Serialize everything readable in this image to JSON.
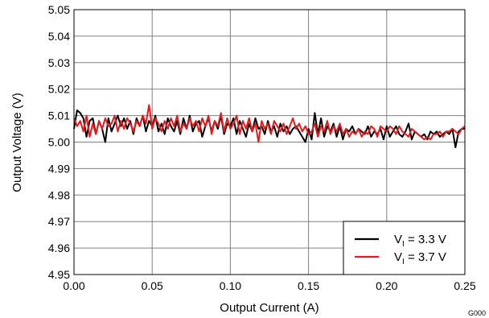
{
  "chart_data": {
    "type": "line",
    "xlabel": "Output Current (A)",
    "ylabel": "Output Voltage (V)",
    "xlim": [
      0,
      0.25
    ],
    "ylim": [
      4.95,
      5.05
    ],
    "x_ticks": [
      "0.00",
      "0.05",
      "0.10",
      "0.15",
      "0.20",
      "0.25"
    ],
    "y_ticks": [
      "4.95",
      "4.96",
      "4.97",
      "4.98",
      "4.99",
      "5.00",
      "5.01",
      "5.02",
      "5.03",
      "5.04",
      "5.05"
    ],
    "grid": true,
    "legend_position": "bottom-right",
    "figure_code": "G000",
    "series": [
      {
        "name_main": "V",
        "name_sub": "I",
        "name_rest": " = 3.3 V",
        "color": "#000000",
        "x": [
          0,
          0.002,
          0.004,
          0.006,
          0.008,
          0.01,
          0.012,
          0.014,
          0.016,
          0.018,
          0.02,
          0.022,
          0.024,
          0.026,
          0.028,
          0.03,
          0.032,
          0.034,
          0.036,
          0.038,
          0.04,
          0.042,
          0.044,
          0.046,
          0.048,
          0.05,
          0.052,
          0.054,
          0.056,
          0.058,
          0.06,
          0.062,
          0.064,
          0.066,
          0.068,
          0.07,
          0.072,
          0.074,
          0.076,
          0.078,
          0.08,
          0.082,
          0.084,
          0.086,
          0.088,
          0.09,
          0.092,
          0.094,
          0.096,
          0.098,
          0.1,
          0.102,
          0.104,
          0.106,
          0.108,
          0.11,
          0.112,
          0.114,
          0.116,
          0.118,
          0.12,
          0.122,
          0.124,
          0.126,
          0.128,
          0.13,
          0.132,
          0.134,
          0.136,
          0.138,
          0.14,
          0.142,
          0.144,
          0.146,
          0.148,
          0.15,
          0.152,
          0.154,
          0.156,
          0.158,
          0.16,
          0.162,
          0.164,
          0.166,
          0.168,
          0.17,
          0.172,
          0.174,
          0.176,
          0.178,
          0.18,
          0.182,
          0.184,
          0.186,
          0.188,
          0.19,
          0.192,
          0.194,
          0.196,
          0.198,
          0.2,
          0.202,
          0.204,
          0.206,
          0.208,
          0.21,
          0.212,
          0.214,
          0.216,
          0.218,
          0.22,
          0.222,
          0.224,
          0.226,
          0.228,
          0.23,
          0.232,
          0.234,
          0.236,
          0.238,
          0.24,
          0.242,
          0.244,
          0.246,
          0.248,
          0.25
        ],
        "values": [
          5.005,
          5.012,
          5.011,
          5.009,
          5.002,
          5.008,
          5.009,
          5.003,
          5.008,
          5.005,
          5.0,
          5.009,
          5.004,
          5.007,
          5.01,
          5.006,
          5.009,
          5.005,
          5.008,
          5.003,
          5.009,
          5.006,
          5.01,
          5.004,
          5.008,
          5.006,
          5.01,
          5.004,
          5.007,
          5.003,
          5.009,
          5.006,
          5.004,
          5.008,
          5.003,
          5.009,
          5.005,
          5.01,
          5.004,
          5.007,
          5.008,
          5.002,
          5.006,
          5.009,
          5.004,
          5.008,
          5.005,
          5.01,
          5.003,
          5.007,
          5.006,
          5.009,
          5.003,
          5.008,
          5.005,
          5.002,
          5.007,
          5.004,
          5.009,
          5.005,
          5.006,
          5.003,
          5.008,
          5.004,
          5.006,
          5.002,
          5.007,
          5.004,
          5.006,
          5.003,
          5.005,
          5.006,
          5.004,
          5.002,
          5.0,
          5.005,
          5.001,
          5.011,
          5.003,
          5.009,
          5.002,
          5.006,
          5.004,
          5.007,
          5.002,
          5.006,
          5.001,
          5.005,
          5.004,
          5.006,
          5.003,
          5.005,
          5.004,
          5.003,
          5.006,
          5.002,
          5.004,
          5.003,
          5.005,
          5.001,
          5.006,
          5.002,
          5.004,
          5.006,
          5.003,
          5.002,
          5.004,
          5.007,
          5.001,
          5.004,
          5.003,
          5.002,
          5.003,
          5.001,
          5.004,
          5.003,
          5.004,
          5.002,
          5.003,
          5.004,
          5.003,
          5.005,
          4.998,
          5.004,
          5.005,
          5.005
        ]
      },
      {
        "name_main": "V",
        "name_sub": "I",
        "name_rest": " = 3.7 V",
        "color": "#e8191c",
        "x": [
          0,
          0.002,
          0.004,
          0.006,
          0.008,
          0.01,
          0.012,
          0.014,
          0.016,
          0.018,
          0.02,
          0.022,
          0.024,
          0.026,
          0.028,
          0.03,
          0.032,
          0.034,
          0.036,
          0.038,
          0.04,
          0.042,
          0.044,
          0.046,
          0.048,
          0.05,
          0.052,
          0.054,
          0.056,
          0.058,
          0.06,
          0.062,
          0.064,
          0.066,
          0.068,
          0.07,
          0.072,
          0.074,
          0.076,
          0.078,
          0.08,
          0.082,
          0.084,
          0.086,
          0.088,
          0.09,
          0.092,
          0.094,
          0.096,
          0.098,
          0.1,
          0.102,
          0.104,
          0.106,
          0.108,
          0.11,
          0.112,
          0.114,
          0.116,
          0.118,
          0.12,
          0.122,
          0.124,
          0.126,
          0.128,
          0.13,
          0.132,
          0.134,
          0.136,
          0.138,
          0.14,
          0.142,
          0.144,
          0.146,
          0.148,
          0.15,
          0.152,
          0.154,
          0.156,
          0.158,
          0.16,
          0.162,
          0.164,
          0.166,
          0.168,
          0.17,
          0.172,
          0.174,
          0.176,
          0.178,
          0.18,
          0.182,
          0.184,
          0.186,
          0.188,
          0.19,
          0.192,
          0.194,
          0.196,
          0.198,
          0.2,
          0.202,
          0.204,
          0.206,
          0.208,
          0.21,
          0.212,
          0.214,
          0.216,
          0.218,
          0.22,
          0.222,
          0.224,
          0.226,
          0.228,
          0.23,
          0.232,
          0.234,
          0.236,
          0.238,
          0.24,
          0.242,
          0.244,
          0.246,
          0.248,
          0.25
        ],
        "values": [
          5.009,
          5.006,
          5.008,
          5.004,
          5.01,
          5.002,
          5.007,
          5.003,
          5.008,
          5.005,
          5.009,
          5.006,
          5.007,
          5.01,
          5.004,
          5.008,
          5.005,
          5.009,
          5.007,
          5.004,
          5.008,
          5.006,
          5.01,
          5.007,
          5.014,
          5.005,
          5.009,
          5.007,
          5.004,
          5.008,
          5.005,
          5.009,
          5.006,
          5.01,
          5.004,
          5.007,
          5.005,
          5.009,
          5.006,
          5.008,
          5.004,
          5.009,
          5.006,
          5.01,
          5.003,
          5.008,
          5.006,
          5.011,
          5.004,
          5.009,
          5.005,
          5.007,
          5.01,
          5.003,
          5.008,
          5.005,
          5.009,
          5.004,
          5.007,
          5.0,
          5.008,
          5.005,
          5.007,
          5.003,
          5.008,
          5.006,
          5.004,
          5.007,
          5.003,
          5.006,
          5.009,
          5.005,
          5.007,
          5.004,
          5.006,
          5.003,
          5.004,
          5.007,
          5.002,
          5.006,
          5.004,
          5.008,
          5.003,
          5.006,
          5.004,
          5.007,
          5.003,
          5.005,
          5.002,
          5.004,
          5.003,
          5.005,
          5.002,
          5.004,
          5.003,
          5.006,
          5.005,
          5.002,
          5.006,
          5.005,
          5.004,
          5.006,
          5.005,
          5.003,
          5.006,
          5.004,
          5.003,
          5.002,
          5.005,
          5.004,
          5.003,
          5.002,
          5.001,
          5.002,
          5.001,
          5.003,
          5.003,
          5.004,
          5.002,
          5.004,
          5.004,
          5.005,
          5.004,
          5.003,
          5.005,
          5.006
        ]
      }
    ]
  }
}
